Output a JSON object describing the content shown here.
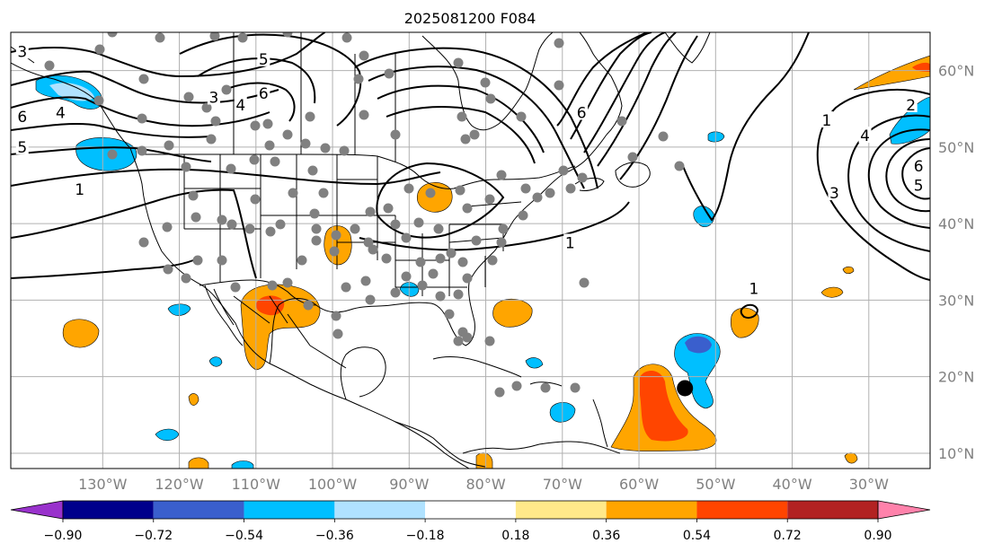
{
  "title": "2025081200 F084",
  "map": {
    "lon_range": [
      -142,
      -22
    ],
    "lat_range": [
      8,
      65
    ],
    "lon_ticks": [
      {
        "value": -130,
        "label": "130°W"
      },
      {
        "value": -120,
        "label": "120°W"
      },
      {
        "value": -110,
        "label": "110°W"
      },
      {
        "value": -100,
        "label": "100°W"
      },
      {
        "value": -90,
        "label": "90°W"
      },
      {
        "value": -80,
        "label": "80°W"
      },
      {
        "value": -70,
        "label": "70°W"
      },
      {
        "value": -60,
        "label": "60°W"
      },
      {
        "value": -50,
        "label": "50°W"
      },
      {
        "value": -40,
        "label": "40°W"
      },
      {
        "value": -30,
        "label": "30°W"
      }
    ],
    "lat_ticks": [
      {
        "value": 10,
        "label": "10°N"
      },
      {
        "value": 20,
        "label": "20°N"
      },
      {
        "value": 30,
        "label": "30°N"
      },
      {
        "value": 40,
        "label": "40°N"
      },
      {
        "value": 50,
        "label": "50°N"
      },
      {
        "value": 60,
        "label": "60°N"
      }
    ],
    "grid": true,
    "colors": {
      "land_line": "#000000",
      "grid": "#b0b0b0",
      "station": "#808080",
      "contour": "#000000"
    }
  },
  "contour_labels": [
    {
      "text": "3",
      "lon": -140.5,
      "lat": 62.5
    },
    {
      "text": "5",
      "lon": -109,
      "lat": 61.5
    },
    {
      "text": "3",
      "lon": -115.5,
      "lat": 56.5
    },
    {
      "text": "4",
      "lon": -112,
      "lat": 55.5
    },
    {
      "text": "6",
      "lon": -109,
      "lat": 57
    },
    {
      "text": "6",
      "lon": -140.5,
      "lat": 54
    },
    {
      "text": "4",
      "lon": -135.5,
      "lat": 54.5
    },
    {
      "text": "5",
      "lon": -140.5,
      "lat": 50
    },
    {
      "text": "1",
      "lon": -133,
      "lat": 44.5
    },
    {
      "text": "1",
      "lon": -69,
      "lat": 37.5
    },
    {
      "text": "6",
      "lon": -67.5,
      "lat": 54.5
    },
    {
      "text": "1",
      "lon": -45,
      "lat": 31.5
    },
    {
      "text": "1",
      "lon": -35.5,
      "lat": 53.5
    },
    {
      "text": "2",
      "lon": -24.5,
      "lat": 55.5
    },
    {
      "text": "4",
      "lon": -30.5,
      "lat": 51.5
    },
    {
      "text": "6",
      "lon": -23.5,
      "lat": 47.5
    },
    {
      "text": "5",
      "lon": -23.5,
      "lat": 45
    },
    {
      "text": "3",
      "lon": -34.5,
      "lat": 44
    }
  ],
  "hurricane_marker": {
    "lon": -54,
    "lat": 18.5
  },
  "colorbar": {
    "boundaries": [
      -0.9,
      -0.72,
      -0.54,
      -0.36,
      -0.18,
      0.18,
      0.36,
      0.54,
      0.72,
      0.9
    ],
    "tick_labels": [
      "−0.90",
      "−0.72",
      "−0.54",
      "−0.36",
      "−0.18",
      "0.18",
      "0.36",
      "0.54",
      "0.72",
      "0.90"
    ],
    "colors": [
      "#9932cc",
      "#00008b",
      "#3a5fcd",
      "#00bfff",
      "#b0e2ff",
      "#ffffff",
      "#ffe98a",
      "#ffa500",
      "#ff4500",
      "#b22222",
      "#ff82ab"
    ],
    "extend": "both"
  }
}
